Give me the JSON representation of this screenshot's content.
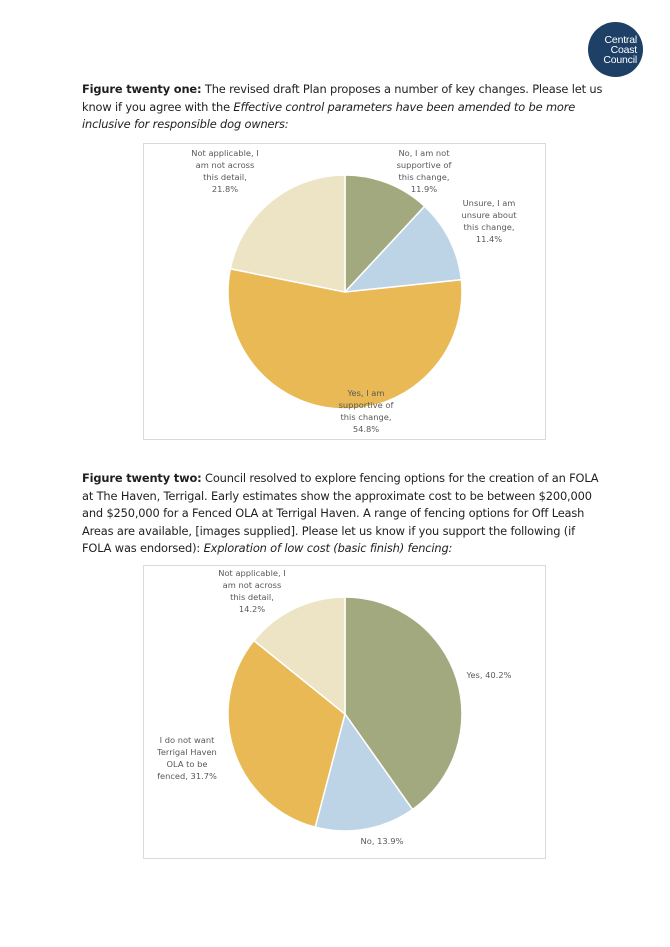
{
  "logo": {
    "lines": [
      "Central",
      "Coast",
      "Council"
    ]
  },
  "figure21": {
    "lead": "Figure twenty one:",
    "text": " The revised draft Plan proposes a number of key changes. Please let us know if you agree with the ",
    "italic": "Effective control parameters have been amended to be more inclusive for responsible dog owners:"
  },
  "figure22": {
    "lead": "Figure twenty two:",
    "text": " Council resolved to explore fencing options for the creation of an FOLA at The Haven, Terrigal. Early estimates show the approximate cost to be between $200,000 and $250,000 for a Fenced OLA at Terrigal Haven. A range of fencing options for Off Leash Areas are available, [images supplied]. Please let us know if you support the following (if FOLA was endorsed): ",
    "italic": "Exploration of low cost (basic finish) fencing:"
  },
  "chart_data": [
    {
      "type": "pie",
      "title": "",
      "slices": [
        {
          "label": "No, I am not supportive of this change",
          "value": 11.9,
          "display": [
            "No, I am not",
            "supportive of",
            "this change,",
            "11.9%"
          ],
          "color": "#a3a97f"
        },
        {
          "label": "Unsure, I am unsure about this change",
          "value": 11.4,
          "display": [
            "Unsure, I am",
            "unsure about",
            "this change,",
            "11.4%"
          ],
          "color": "#bdd4e7"
        },
        {
          "label": "Yes, I am supportive of this change",
          "value": 54.8,
          "display": [
            "Yes, I am",
            "supportive of",
            "this change,",
            "54.8%"
          ],
          "color": "#e8b954"
        },
        {
          "label": "Not applicable, I am not across this detail",
          "value": 21.8,
          "display": [
            "Not applicable, I",
            "am not across",
            "this detail,",
            "21.8%"
          ],
          "color": "#ede4c5"
        }
      ]
    },
    {
      "type": "pie",
      "title": "",
      "slices": [
        {
          "label": "Yes",
          "value": 40.2,
          "display": [
            "Yes, 40.2%"
          ],
          "color": "#a3a97f"
        },
        {
          "label": "No",
          "value": 13.9,
          "display": [
            "No, 13.9%"
          ],
          "color": "#bdd4e7"
        },
        {
          "label": "I do not want Terrigal Haven OLA to be fenced",
          "value": 31.7,
          "display": [
            "I do not want",
            "Terrigal Haven",
            "OLA to be",
            "fenced, 31.7%"
          ],
          "color": "#e8b954"
        },
        {
          "label": "Not applicable, I am not across this detail",
          "value": 14.2,
          "display": [
            "Not applicable, I",
            "am not across",
            "this detail,",
            "14.2%"
          ],
          "color": "#ede4c5"
        }
      ]
    }
  ]
}
